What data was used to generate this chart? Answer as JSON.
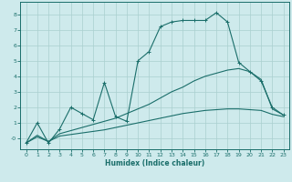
{
  "xlabel": "Humidex (Indice chaleur)",
  "bg_color": "#ceeaec",
  "grid_color": "#aacfcf",
  "line_color": "#1a6e6a",
  "xlim": [
    -0.5,
    23.5
  ],
  "ylim": [
    -0.7,
    8.8
  ],
  "xticks": [
    0,
    1,
    2,
    3,
    4,
    5,
    6,
    7,
    8,
    9,
    10,
    11,
    12,
    13,
    14,
    15,
    16,
    17,
    18,
    19,
    20,
    21,
    22,
    23
  ],
  "yticks": [
    0,
    1,
    2,
    3,
    4,
    5,
    6,
    7,
    8
  ],
  "ytick_labels": [
    "-0",
    "1",
    "2",
    "3",
    "4",
    "5",
    "6",
    "7",
    "8"
  ],
  "lines": [
    {
      "x": [
        0,
        1,
        2,
        3,
        4,
        5,
        6,
        7,
        8,
        9,
        10,
        11,
        12,
        13,
        14,
        15,
        16,
        17,
        18,
        19,
        20,
        21,
        22,
        23
      ],
      "y": [
        -0.3,
        1.0,
        -0.3,
        0.6,
        2.0,
        1.6,
        1.2,
        3.6,
        1.4,
        1.1,
        5.0,
        5.6,
        7.2,
        7.5,
        7.6,
        7.6,
        7.6,
        8.1,
        7.5,
        4.9,
        4.3,
        3.7,
        2.0,
        1.5
      ],
      "marker": "+"
    },
    {
      "x": [
        0,
        1,
        2,
        3,
        4,
        5,
        6,
        7,
        8,
        9,
        10,
        11,
        12,
        13,
        14,
        15,
        16,
        17,
        18,
        19,
        20,
        21,
        22,
        23
      ],
      "y": [
        -0.3,
        0.2,
        -0.2,
        0.3,
        0.5,
        0.7,
        0.9,
        1.1,
        1.3,
        1.6,
        1.9,
        2.2,
        2.6,
        3.0,
        3.3,
        3.7,
        4.0,
        4.2,
        4.4,
        4.5,
        4.3,
        3.8,
        1.9,
        1.5
      ],
      "marker": null
    },
    {
      "x": [
        0,
        1,
        2,
        3,
        4,
        5,
        6,
        7,
        8,
        9,
        10,
        11,
        12,
        13,
        14,
        15,
        16,
        17,
        18,
        19,
        20,
        21,
        22,
        23
      ],
      "y": [
        -0.3,
        0.1,
        -0.2,
        0.15,
        0.25,
        0.35,
        0.45,
        0.55,
        0.7,
        0.85,
        1.0,
        1.15,
        1.3,
        1.45,
        1.6,
        1.7,
        1.8,
        1.85,
        1.9,
        1.9,
        1.85,
        1.8,
        1.55,
        1.4
      ],
      "marker": null
    }
  ]
}
